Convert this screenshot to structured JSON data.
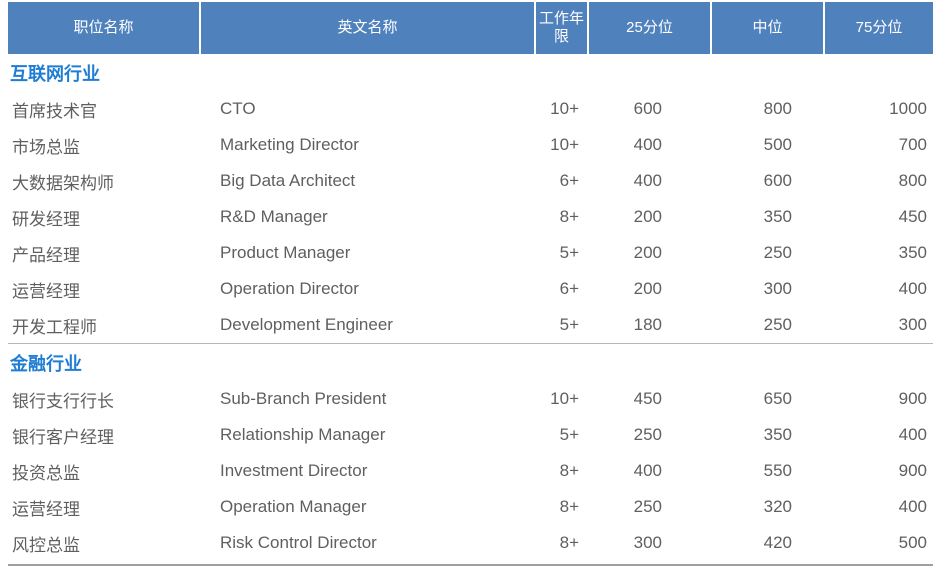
{
  "table": {
    "header": {
      "columns": [
        "职位名称",
        "英文名称",
        "工作年限",
        "25分位",
        "中位",
        "75分位"
      ]
    },
    "sections": [
      {
        "title": "互联网行业",
        "rows": [
          {
            "position": "首席技术官",
            "english": "CTO",
            "years": "10+",
            "p25": "600",
            "median": "800",
            "p75": "1000"
          },
          {
            "position": "市场总监",
            "english": "Marketing Director",
            "years": "10+",
            "p25": "400",
            "median": "500",
            "p75": "700"
          },
          {
            "position": "大数据架构师",
            "english": "Big Data Architect",
            "years": "6+",
            "p25": "400",
            "median": "600",
            "p75": "800"
          },
          {
            "position": "研发经理",
            "english": "R&D Manager",
            "years": "8+",
            "p25": "200",
            "median": "350",
            "p75": "450"
          },
          {
            "position": "产品经理",
            "english": "Product Manager",
            "years": "5+",
            "p25": "200",
            "median": "250",
            "p75": "350"
          },
          {
            "position": "运营经理",
            "english": "Operation Director",
            "years": "6+",
            "p25": "200",
            "median": "300",
            "p75": "400"
          },
          {
            "position": "开发工程师",
            "english": "Development Engineer",
            "years": "5+",
            "p25": "180",
            "median": "250",
            "p75": "300"
          }
        ]
      },
      {
        "title": "金融行业",
        "rows": [
          {
            "position": "银行支行行长",
            "english": "Sub-Branch President",
            "years": "10+",
            "p25": "450",
            "median": "650",
            "p75": "900"
          },
          {
            "position": "银行客户经理",
            "english": "Relationship Manager",
            "years": "5+",
            "p25": "250",
            "median": "350",
            "p75": "400"
          },
          {
            "position": "投资总监",
            "english": "Investment Director",
            "years": "8+",
            "p25": "400",
            "median": "550",
            "p75": "900"
          },
          {
            "position": "运营经理",
            "english": "Operation Manager",
            "years": "8+",
            "p25": "250",
            "median": "320",
            "p75": "400"
          },
          {
            "position": "风控总监",
            "english": "Risk Control Director",
            "years": "8+",
            "p25": "300",
            "median": "420",
            "p75": "500"
          }
        ]
      }
    ],
    "colors": {
      "header_bg": "#4f81bd",
      "header_text": "#ffffff",
      "section_title": "#1f7dd3",
      "body_text": "#5f5f5f",
      "divider": "#b7b7b7",
      "bottom_border": "#9f9f9f"
    }
  }
}
